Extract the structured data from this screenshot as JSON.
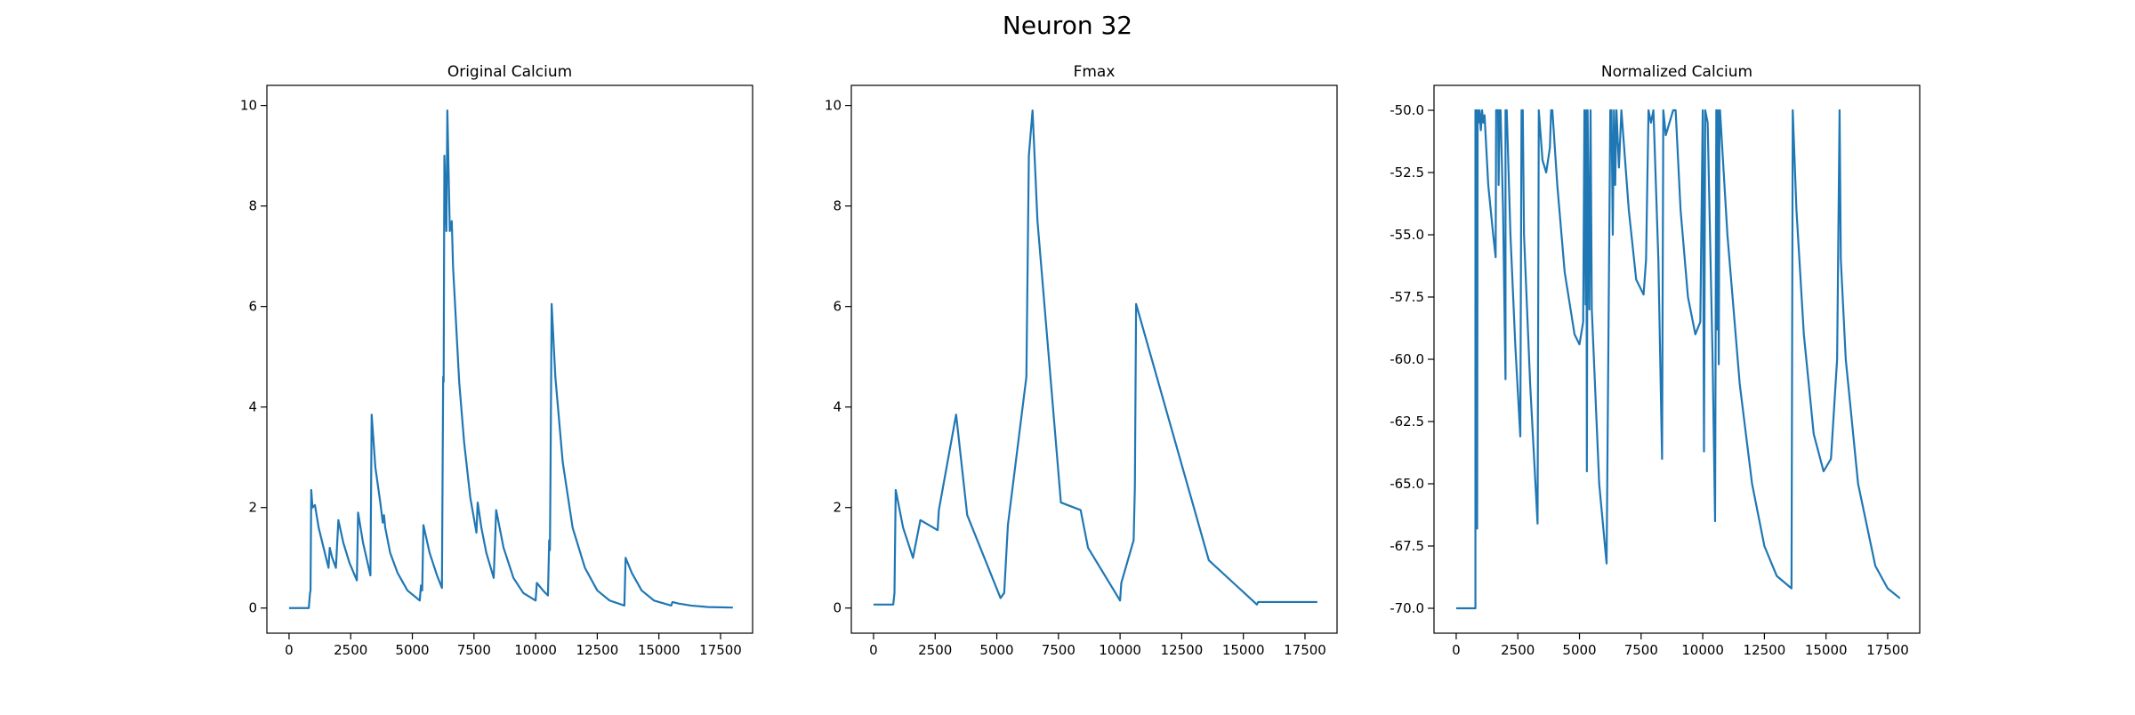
{
  "title": "Neuron 32",
  "chart_data": [
    {
      "type": "line",
      "title": "Original Calcium",
      "x": [
        0,
        800,
        850,
        870,
        900,
        950,
        1050,
        1200,
        1400,
        1600,
        1650,
        1750,
        1900,
        2000,
        2200,
        2450,
        2750,
        2800,
        3000,
        3300,
        3350,
        3500,
        3700,
        3800,
        3850,
        3900,
        4100,
        4400,
        4800,
        5300,
        5350,
        5400,
        5450,
        5700,
        6000,
        6200,
        6250,
        6270,
        6300,
        6380,
        6420,
        6520,
        6600,
        6650,
        6900,
        7100,
        7350,
        7600,
        7650,
        7800,
        8000,
        8300,
        8400,
        8700,
        9100,
        9500,
        10000,
        10050,
        10300,
        10500,
        10550,
        10580,
        10600,
        10650,
        10800,
        11100,
        11500,
        12000,
        12500,
        13000,
        13600,
        13650,
        13900,
        14300,
        14800,
        15500,
        15550,
        15800,
        16300,
        17000,
        18000
      ],
      "series": [
        {
          "color": "#1f77b4",
          "values": [
            0,
            0,
            0.3,
            0.35,
            2.35,
            2.0,
            2.05,
            1.6,
            1.2,
            0.8,
            1.2,
            1.0,
            0.8,
            1.75,
            1.3,
            0.9,
            0.55,
            1.9,
            1.3,
            0.65,
            3.85,
            2.8,
            2.1,
            1.7,
            1.85,
            1.6,
            1.1,
            0.7,
            0.35,
            0.15,
            0.45,
            0.35,
            1.65,
            1.1,
            0.65,
            0.4,
            4.6,
            4.5,
            9.0,
            7.5,
            9.9,
            7.5,
            7.7,
            6.8,
            4.5,
            3.3,
            2.2,
            1.5,
            2.1,
            1.6,
            1.1,
            0.6,
            1.95,
            1.2,
            0.6,
            0.3,
            0.15,
            0.5,
            0.35,
            0.25,
            1.35,
            1.15,
            2.4,
            6.05,
            4.6,
            2.9,
            1.6,
            0.8,
            0.35,
            0.15,
            0.05,
            1.0,
            0.7,
            0.35,
            0.15,
            0.05,
            0.12,
            0.09,
            0.05,
            0.02,
            0.01
          ]
        }
      ],
      "xlim": [
        -900,
        18800
      ],
      "ylim": [
        -0.5,
        10.4
      ],
      "xticks": [
        0,
        2500,
        5000,
        7500,
        10000,
        12500,
        15000,
        17500
      ],
      "yticks": [
        0,
        2,
        4,
        6,
        8,
        10
      ]
    },
    {
      "type": "line",
      "title": "Fmax",
      "x": [
        0,
        800,
        850,
        900,
        1200,
        1600,
        1900,
        2600,
        2650,
        3350,
        3800,
        5150,
        5300,
        5450,
        6200,
        6300,
        6450,
        6650,
        7600,
        8400,
        8700,
        10000,
        10050,
        10550,
        10600,
        10650,
        13600,
        15550,
        15600,
        18000
      ],
      "series": [
        {
          "color": "#1f77b4",
          "values": [
            0.07,
            0.07,
            0.3,
            2.35,
            1.6,
            1.0,
            1.75,
            1.55,
            1.95,
            3.85,
            1.85,
            0.2,
            0.3,
            1.65,
            4.6,
            9.0,
            9.9,
            7.7,
            2.1,
            1.95,
            1.2,
            0.15,
            0.5,
            1.35,
            2.4,
            6.05,
            0.95,
            0.07,
            0.12,
            0.12
          ]
        }
      ],
      "xlim": [
        -900,
        18800
      ],
      "ylim": [
        -0.5,
        10.4
      ],
      "xticks": [
        0,
        2500,
        5000,
        7500,
        10000,
        12500,
        15000,
        17500
      ],
      "yticks": [
        0,
        2,
        4,
        6,
        8,
        10
      ]
    },
    {
      "type": "line",
      "title": "Normalized Calcium",
      "x": [
        0,
        780,
        780,
        800,
        820,
        850,
        870,
        900,
        950,
        1000,
        1050,
        1100,
        1150,
        1300,
        1500,
        1600,
        1620,
        1700,
        1720,
        1760,
        1800,
        1900,
        2000,
        2000,
        2050,
        2200,
        2400,
        2600,
        2650,
        2700,
        2750,
        3000,
        3300,
        3350,
        3500,
        3650,
        3800,
        3850,
        3900,
        4100,
        4400,
        4800,
        5000,
        5150,
        5200,
        5250,
        5280,
        5300,
        5330,
        5400,
        5450,
        5500,
        5800,
        6100,
        6250,
        6300,
        6350,
        6400,
        6450,
        6500,
        6600,
        6700,
        7000,
        7300,
        7600,
        7700,
        7800,
        7900,
        8000,
        8200,
        8350,
        8400,
        8500,
        8650,
        8800,
        8900,
        9100,
        9400,
        9700,
        9900,
        10000,
        10050,
        10100,
        10200,
        10400,
        10500,
        10550,
        10580,
        10600,
        10650,
        10680,
        10700,
        11000,
        11500,
        12000,
        12500,
        13000,
        13600,
        13650,
        13800,
        14100,
        14500,
        14900,
        15200,
        15450,
        15550,
        15600,
        15800,
        16300,
        17000,
        17500,
        18000
      ],
      "series": [
        {
          "color": "#1f77b4",
          "values": [
            -70,
            -70,
            -50,
            -66.5,
            -50,
            -66.8,
            -50,
            -50.5,
            -50,
            -50.8,
            -50,
            -50.5,
            -50.2,
            -53,
            -55,
            -55.9,
            -50,
            -50,
            -53,
            -50,
            -50,
            -54,
            -60.8,
            -50,
            -50,
            -55,
            -59.5,
            -63.1,
            -50,
            -50,
            -55,
            -61,
            -66.6,
            -50,
            -52,
            -52.5,
            -51.5,
            -50,
            -50,
            -53,
            -56.5,
            -59,
            -59.4,
            -58.5,
            -50,
            -57.8,
            -50,
            -64.5,
            -50,
            -58,
            -50,
            -58,
            -65,
            -68.2,
            -50,
            -50,
            -55,
            -50,
            -53,
            -50,
            -52.3,
            -50,
            -54,
            -56.8,
            -57.4,
            -56,
            -50,
            -50.5,
            -50,
            -56,
            -64,
            -50,
            -51,
            -50.5,
            -50,
            -50,
            -54,
            -57.5,
            -59,
            -58.5,
            -50,
            -63.7,
            -50,
            -50.5,
            -60,
            -66.5,
            -50,
            -58.8,
            -50,
            -60.2,
            -50,
            -50,
            -55,
            -61,
            -65,
            -67.5,
            -68.7,
            -69.2,
            -50,
            -54,
            -59,
            -63,
            -64.5,
            -64,
            -60,
            -50,
            -56,
            -60,
            -65,
            -68.3,
            -69.2,
            -69.6
          ]
        }
      ],
      "xlim": [
        -900,
        18800
      ],
      "ylim": [
        -71,
        -49
      ],
      "xticks": [
        0,
        2500,
        5000,
        7500,
        10000,
        12500,
        15000,
        17500
      ],
      "yticks": [
        {
          "value": -70,
          "label": "-70.0"
        },
        -67.5,
        {
          "value": -65,
          "label": "-65.0"
        },
        -62.5,
        {
          "value": -60,
          "label": "-60.0"
        },
        -57.5,
        {
          "value": -55,
          "label": "-55.0"
        },
        -52.5,
        {
          "value": -50,
          "label": "-50.0"
        }
      ]
    }
  ]
}
